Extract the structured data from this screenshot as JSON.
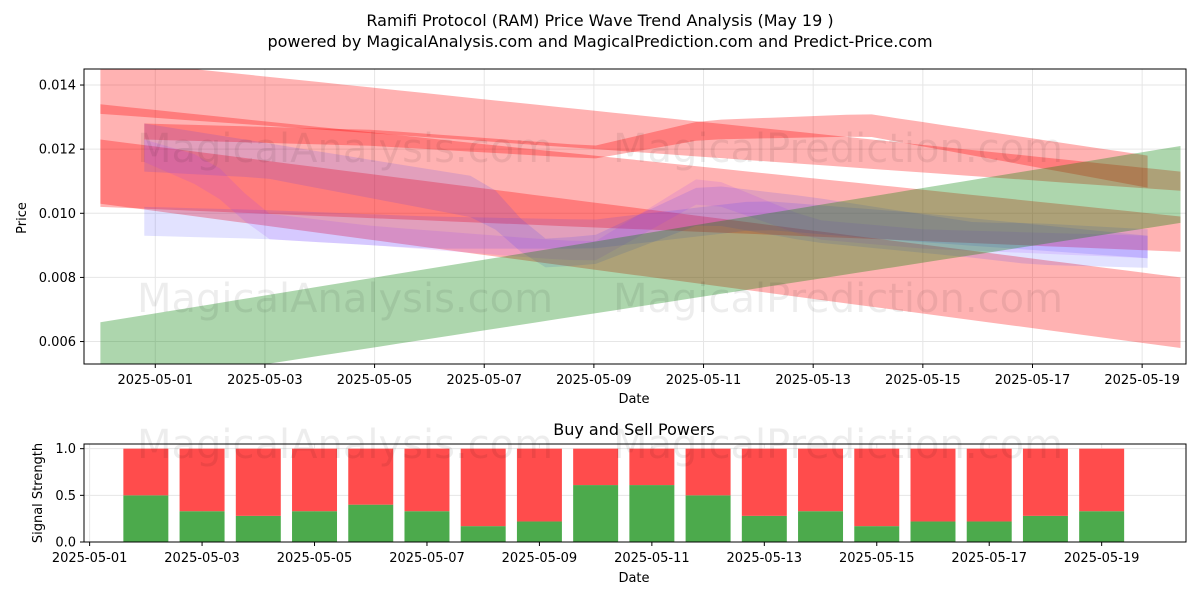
{
  "title": "Ramifi Protocol (RAM) Price Wave Trend Analysis (May 19 )",
  "subtitle": "powered by MagicalAnalysis.com and MagicalPrediction.com and Predict-Price.com",
  "watermarks": [
    "MagicalAnalysis.com",
    "MagicalPrediction.com"
  ],
  "colors": {
    "red_band": "#ff0000",
    "blue_band": "#3333ff",
    "purple_band": "#9933ff",
    "green_band": "#008000",
    "buy": "#4caa4c",
    "sell": "#ff4c4c"
  },
  "chart_data": [
    {
      "type": "area",
      "title": "",
      "xlabel": "Date",
      "ylabel": "Price",
      "xlim": [
        "2025-04-29.7",
        "2025-05-19.8"
      ],
      "ylim": [
        0.0053,
        0.0145
      ],
      "grid": true,
      "x_ticks": [
        "2025-05-01",
        "2025-05-03",
        "2025-05-05",
        "2025-05-07",
        "2025-05-09",
        "2025-05-11",
        "2025-05-13",
        "2025-05-15",
        "2025-05-17",
        "2025-05-19"
      ],
      "y_ticks": [
        0.006,
        0.008,
        0.01,
        0.012,
        0.014
      ],
      "y_tick_labels": [
        "0.006",
        "0.008",
        "0.010",
        "0.012",
        "0.014"
      ],
      "bands": [
        {
          "color": "red",
          "x": [
            "2025-04-30",
            "2025-05-19.7"
          ],
          "upper": [
            0.0148,
            0.0113
          ],
          "lower": [
            0.0131,
            0.0107
          ]
        },
        {
          "color": "red",
          "x": [
            "2025-04-30",
            "2025-05-19.7"
          ],
          "upper": [
            0.0134,
            0.0099
          ],
          "lower": [
            0.0102,
            0.0088
          ]
        },
        {
          "color": "red",
          "x": [
            "2025-04-30",
            "2025-05-19.7"
          ],
          "upper": [
            0.0123,
            0.008
          ],
          "lower": [
            0.0103,
            0.0058
          ]
        },
        {
          "color": "red",
          "x": [
            "2025-04-30.8",
            "2025-05-05",
            "2025-05-09",
            "2025-05-11",
            "2025-05-14",
            "2025-05-19.1"
          ],
          "upper": [
            0.0128,
            0.0126,
            0.0121,
            0.0129,
            0.0131,
            0.0118
          ],
          "lower": [
            0.0123,
            0.0121,
            0.0117,
            0.0123,
            0.0124,
            0.0108
          ]
        },
        {
          "color": "blue",
          "x": [
            "2025-04-30.8",
            "2025-05-03",
            "2025-05-07",
            "2025-05-08",
            "2025-05-09",
            "2025-05-11",
            "2025-05-13",
            "2025-05-16",
            "2025-05-17",
            "2025-05-19.1"
          ],
          "upper": [
            0.0128,
            0.0122,
            0.0111,
            0.0092,
            0.0093,
            0.0109,
            0.0105,
            0.0097,
            0.0097,
            0.0095
          ],
          "lower": [
            0.0113,
            0.0111,
            0.0098,
            0.0083,
            0.0084,
            0.0097,
            0.0091,
            0.0086,
            0.0084,
            0.0083
          ]
        },
        {
          "color": "purple",
          "x": [
            "2025-04-30.8",
            "2025-05-02",
            "2025-05-03",
            "2025-05-05",
            "2025-05-08",
            "2025-05-09",
            "2025-05-11",
            "2025-05-13",
            "2025-05-15",
            "2025-05-19.1"
          ],
          "upper": [
            0.0123,
            0.0117,
            0.01,
            0.0096,
            0.0092,
            0.0091,
            0.0112,
            0.0098,
            0.0095,
            0.0093
          ],
          "lower": [
            0.0116,
            0.0107,
            0.0092,
            0.009,
            0.0086,
            0.0085,
            0.0104,
            0.0092,
            0.0089,
            0.0086
          ]
        },
        {
          "color": "blue",
          "x": [
            "2025-04-30.8",
            "2025-05-03",
            "2025-05-06",
            "2025-05-09",
            "2025-05-12",
            "2025-05-15",
            "2025-05-19.1"
          ],
          "upper": [
            0.0102,
            0.0101,
            0.0099,
            0.0098,
            0.0104,
            0.01,
            0.0093
          ],
          "lower": [
            0.0093,
            0.0092,
            0.0089,
            0.0089,
            0.0095,
            0.0091,
            0.0086
          ]
        },
        {
          "color": "green",
          "x": [
            "2025-04-30",
            "2025-05-19.7"
          ],
          "upper": [
            0.0066,
            0.0121
          ],
          "lower": [
            0.0045,
            0.0097
          ]
        }
      ]
    },
    {
      "type": "bar",
      "title": "Buy and Sell Powers",
      "xlabel": "Date",
      "ylabel": "Signal Strength",
      "xlim": [
        "2025-04-30.9",
        "2025-05-20.5"
      ],
      "ylim": [
        0,
        1.05
      ],
      "grid": true,
      "x_ticks": [
        "2025-05-01",
        "2025-05-03",
        "2025-05-05",
        "2025-05-07",
        "2025-05-09",
        "2025-05-11",
        "2025-05-13",
        "2025-05-15",
        "2025-05-17",
        "2025-05-19"
      ],
      "y_ticks": [
        0.0,
        0.5,
        1.0
      ],
      "y_tick_labels": [
        "0.0",
        "0.5",
        "1.0"
      ],
      "categories": [
        "2025-05-02",
        "2025-05-03",
        "2025-05-04",
        "2025-05-05",
        "2025-05-06",
        "2025-05-07",
        "2025-05-08",
        "2025-05-09",
        "2025-05-10",
        "2025-05-11",
        "2025-05-12",
        "2025-05-13",
        "2025-05-14",
        "2025-05-15",
        "2025-05-16",
        "2025-05-17",
        "2025-05-18",
        "2025-05-19"
      ],
      "series": [
        {
          "values": [
            0.5,
            0.33,
            0.28,
            0.33,
            0.4,
            0.33,
            0.17,
            0.22,
            0.61,
            0.61,
            0.5,
            0.28,
            0.33,
            0.17,
            0.22,
            0.22,
            0.28,
            0.33
          ]
        },
        {
          "values": [
            0.5,
            0.67,
            0.72,
            0.67,
            0.6,
            0.67,
            0.83,
            0.78,
            0.39,
            0.39,
            0.5,
            0.72,
            0.67,
            0.83,
            0.78,
            0.78,
            0.72,
            0.67
          ]
        }
      ]
    }
  ]
}
